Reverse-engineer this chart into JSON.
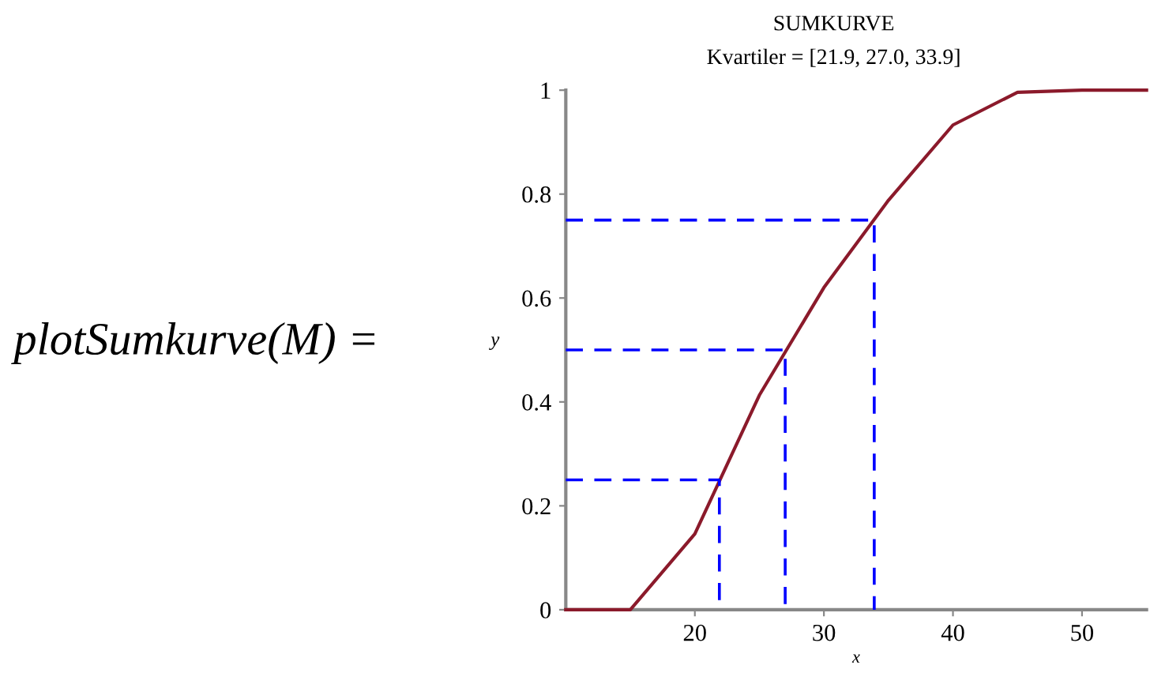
{
  "chart_data": {
    "type": "line",
    "title": "SUMKURVE",
    "subtitle": "Kvartiler = [21.9, 27.0, 33.9]",
    "xlabel": "x",
    "ylabel": "y",
    "xlim": [
      10,
      55
    ],
    "ylim": [
      0,
      1
    ],
    "xticks": [
      20,
      30,
      40,
      50
    ],
    "yticks": [
      0,
      0.2,
      0.4,
      0.6,
      0.8,
      1
    ],
    "grid": false,
    "line_style": "solid",
    "series": [
      {
        "color": "#8b1a2b",
        "x": [
          10,
          15,
          20,
          25,
          30,
          35,
          40,
          45,
          50,
          55
        ],
        "values": [
          0,
          0,
          0.146,
          0.413,
          0.62,
          0.788,
          0.933,
          0.996,
          1,
          1
        ]
      },
      {
        "color": "#0000ff",
        "line_style": "dashed",
        "x": [
          10,
          21.9,
          21.9
        ],
        "values": [
          0.25,
          0.25,
          0
        ]
      },
      {
        "color": "#0000ff",
        "line_style": "dashed",
        "x": [
          10,
          27.0,
          27.0
        ],
        "values": [
          0.5,
          0.5,
          0
        ]
      },
      {
        "color": "#0000ff",
        "line_style": "dashed",
        "x": [
          10,
          33.9,
          33.9
        ],
        "values": [
          0.75,
          0.75,
          0
        ]
      }
    ],
    "annotations": [
      "plotSumkurve(M) ="
    ]
  }
}
